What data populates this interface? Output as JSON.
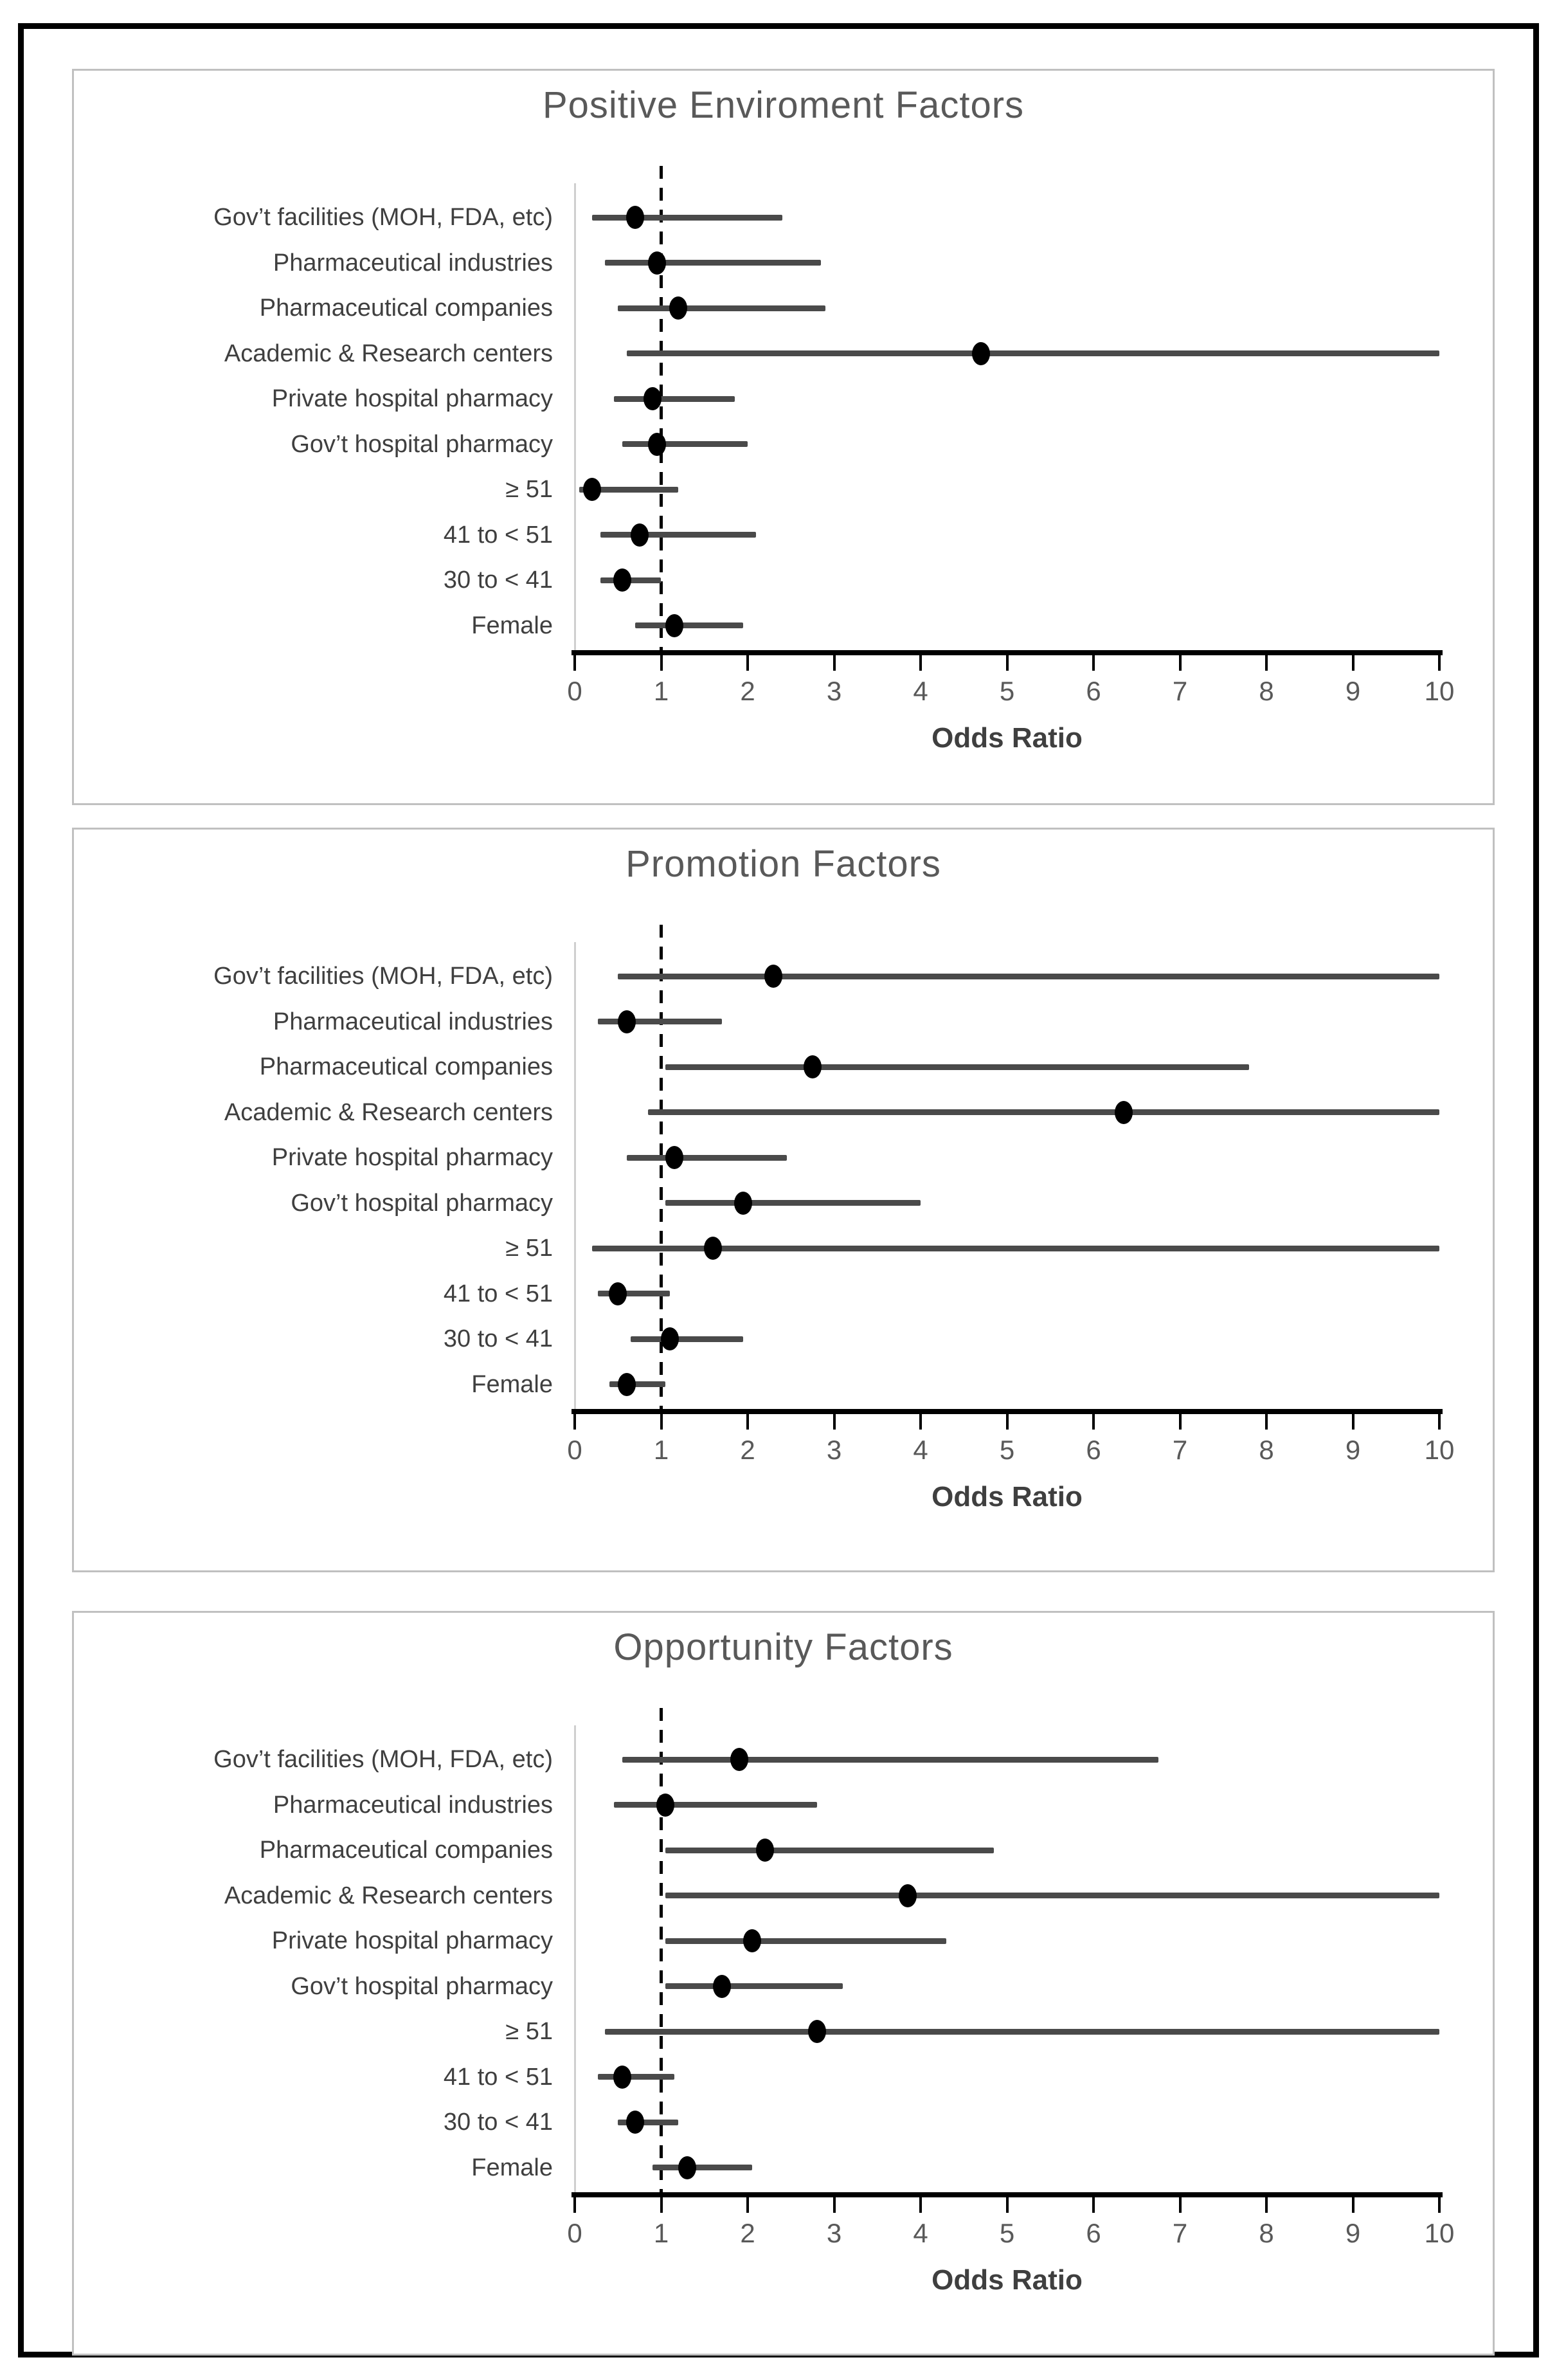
{
  "colors": {
    "background": "#ffffff",
    "frame": "#000000",
    "panel_border": "#c0c0c0",
    "title": "#595959",
    "category_label": "#3f3f3f",
    "tick_label": "#595959",
    "axis": "#000000",
    "ci_bar": "#4a4a4a",
    "marker": "#000000",
    "reference_line": "#000000",
    "zero_line": "#cfcfcf"
  },
  "chart_data": [
    {
      "type": "scatter",
      "subtype": "forest-plot",
      "title": "Positive Enviroment Factors",
      "xlabel": "Odds Ratio",
      "xlim": [
        0,
        10
      ],
      "xticks": [
        0,
        1,
        2,
        3,
        4,
        5,
        6,
        7,
        8,
        9,
        10
      ],
      "reference_line_x": 1,
      "grid": false,
      "legend": null,
      "categories": [
        "Gov’t facilities (MOH, FDA, etc)",
        "Pharmaceutical industries",
        "Pharmaceutical companies",
        "Academic & Research centers",
        "Private hospital pharmacy",
        "Gov’t hospital pharmacy",
        "≥ 51",
        "41 to < 51",
        "30 to < 41",
        "Female"
      ],
      "points": [
        {
          "category": "Gov’t facilities (MOH, FDA, etc)",
          "or": 0.7,
          "ci_low": 0.2,
          "ci_high": 2.4
        },
        {
          "category": "Pharmaceutical industries",
          "or": 0.95,
          "ci_low": 0.35,
          "ci_high": 2.85
        },
        {
          "category": "Pharmaceutical companies",
          "or": 1.2,
          "ci_low": 0.5,
          "ci_high": 2.9
        },
        {
          "category": "Academic & Research centers",
          "or": 4.7,
          "ci_low": 0.6,
          "ci_high": 10
        },
        {
          "category": "Private hospital pharmacy",
          "or": 0.9,
          "ci_low": 0.45,
          "ci_high": 1.85
        },
        {
          "category": "Gov’t hospital pharmacy",
          "or": 0.95,
          "ci_low": 0.55,
          "ci_high": 2.0
        },
        {
          "category": "≥ 51",
          "or": 0.2,
          "ci_low": 0.05,
          "ci_high": 1.2
        },
        {
          "category": "41 to < 51",
          "or": 0.75,
          "ci_low": 0.3,
          "ci_high": 2.1
        },
        {
          "category": "30 to < 41",
          "or": 0.55,
          "ci_low": 0.3,
          "ci_high": 1.0
        },
        {
          "category": "Female",
          "or": 1.15,
          "ci_low": 0.7,
          "ci_high": 1.95
        }
      ]
    },
    {
      "type": "scatter",
      "subtype": "forest-plot",
      "title": "Promotion Factors",
      "xlabel": "Odds Ratio",
      "xlim": [
        0,
        10
      ],
      "xticks": [
        0,
        1,
        2,
        3,
        4,
        5,
        6,
        7,
        8,
        9,
        10
      ],
      "reference_line_x": 1,
      "grid": false,
      "legend": null,
      "categories": [
        "Gov’t facilities (MOH, FDA, etc)",
        "Pharmaceutical industries",
        "Pharmaceutical companies",
        "Academic & Research centers",
        "Private hospital pharmacy",
        "Gov’t hospital pharmacy",
        "≥ 51",
        "41 to < 51",
        "30 to < 41",
        "Female"
      ],
      "points": [
        {
          "category": "Gov’t facilities (MOH, FDA, etc)",
          "or": 2.3,
          "ci_low": 0.5,
          "ci_high": 10
        },
        {
          "category": "Pharmaceutical industries",
          "or": 0.6,
          "ci_low": 0.27,
          "ci_high": 1.7
        },
        {
          "category": "Pharmaceutical companies",
          "or": 2.75,
          "ci_low": 1.05,
          "ci_high": 7.8
        },
        {
          "category": "Academic & Research centers",
          "or": 6.35,
          "ci_low": 0.85,
          "ci_high": 10
        },
        {
          "category": "Private hospital pharmacy",
          "or": 1.15,
          "ci_low": 0.6,
          "ci_high": 2.45
        },
        {
          "category": "Gov’t hospital pharmacy",
          "or": 1.95,
          "ci_low": 1.05,
          "ci_high": 4.0
        },
        {
          "category": "≥ 51",
          "or": 1.6,
          "ci_low": 0.2,
          "ci_high": 10
        },
        {
          "category": "41 to < 51",
          "or": 0.5,
          "ci_low": 0.27,
          "ci_high": 1.1
        },
        {
          "category": "30 to < 41",
          "or": 1.1,
          "ci_low": 0.65,
          "ci_high": 1.95
        },
        {
          "category": "Female",
          "or": 0.6,
          "ci_low": 0.4,
          "ci_high": 1.05
        }
      ]
    },
    {
      "type": "scatter",
      "subtype": "forest-plot",
      "title": "Opportunity Factors",
      "xlabel": "Odds Ratio",
      "xlim": [
        0,
        10
      ],
      "xticks": [
        0,
        1,
        2,
        3,
        4,
        5,
        6,
        7,
        8,
        9,
        10
      ],
      "reference_line_x": 1,
      "grid": false,
      "legend": null,
      "categories": [
        "Gov’t facilities (MOH, FDA, etc)",
        "Pharmaceutical industries",
        "Pharmaceutical companies",
        "Academic & Research centers",
        "Private hospital pharmacy",
        "Gov’t hospital pharmacy",
        "≥ 51",
        "41 to < 51",
        "30 to < 41",
        "Female"
      ],
      "points": [
        {
          "category": "Gov’t facilities (MOH, FDA, etc)",
          "or": 1.9,
          "ci_low": 0.55,
          "ci_high": 6.75
        },
        {
          "category": "Pharmaceutical industries",
          "or": 1.05,
          "ci_low": 0.45,
          "ci_high": 2.8
        },
        {
          "category": "Pharmaceutical companies",
          "or": 2.2,
          "ci_low": 1.05,
          "ci_high": 4.85
        },
        {
          "category": "Academic & Research centers",
          "or": 3.85,
          "ci_low": 1.05,
          "ci_high": 10
        },
        {
          "category": "Private hospital pharmacy",
          "or": 2.05,
          "ci_low": 1.05,
          "ci_high": 4.3
        },
        {
          "category": "Gov’t hospital pharmacy",
          "or": 1.7,
          "ci_low": 1.05,
          "ci_high": 3.1
        },
        {
          "category": "≥ 51",
          "or": 2.8,
          "ci_low": 0.35,
          "ci_high": 10
        },
        {
          "category": "41 to < 51",
          "or": 0.55,
          "ci_low": 0.27,
          "ci_high": 1.15
        },
        {
          "category": "30 to < 41",
          "or": 0.7,
          "ci_low": 0.5,
          "ci_high": 1.2
        },
        {
          "category": "Female",
          "or": 1.3,
          "ci_low": 0.9,
          "ci_high": 2.05
        }
      ]
    }
  ]
}
